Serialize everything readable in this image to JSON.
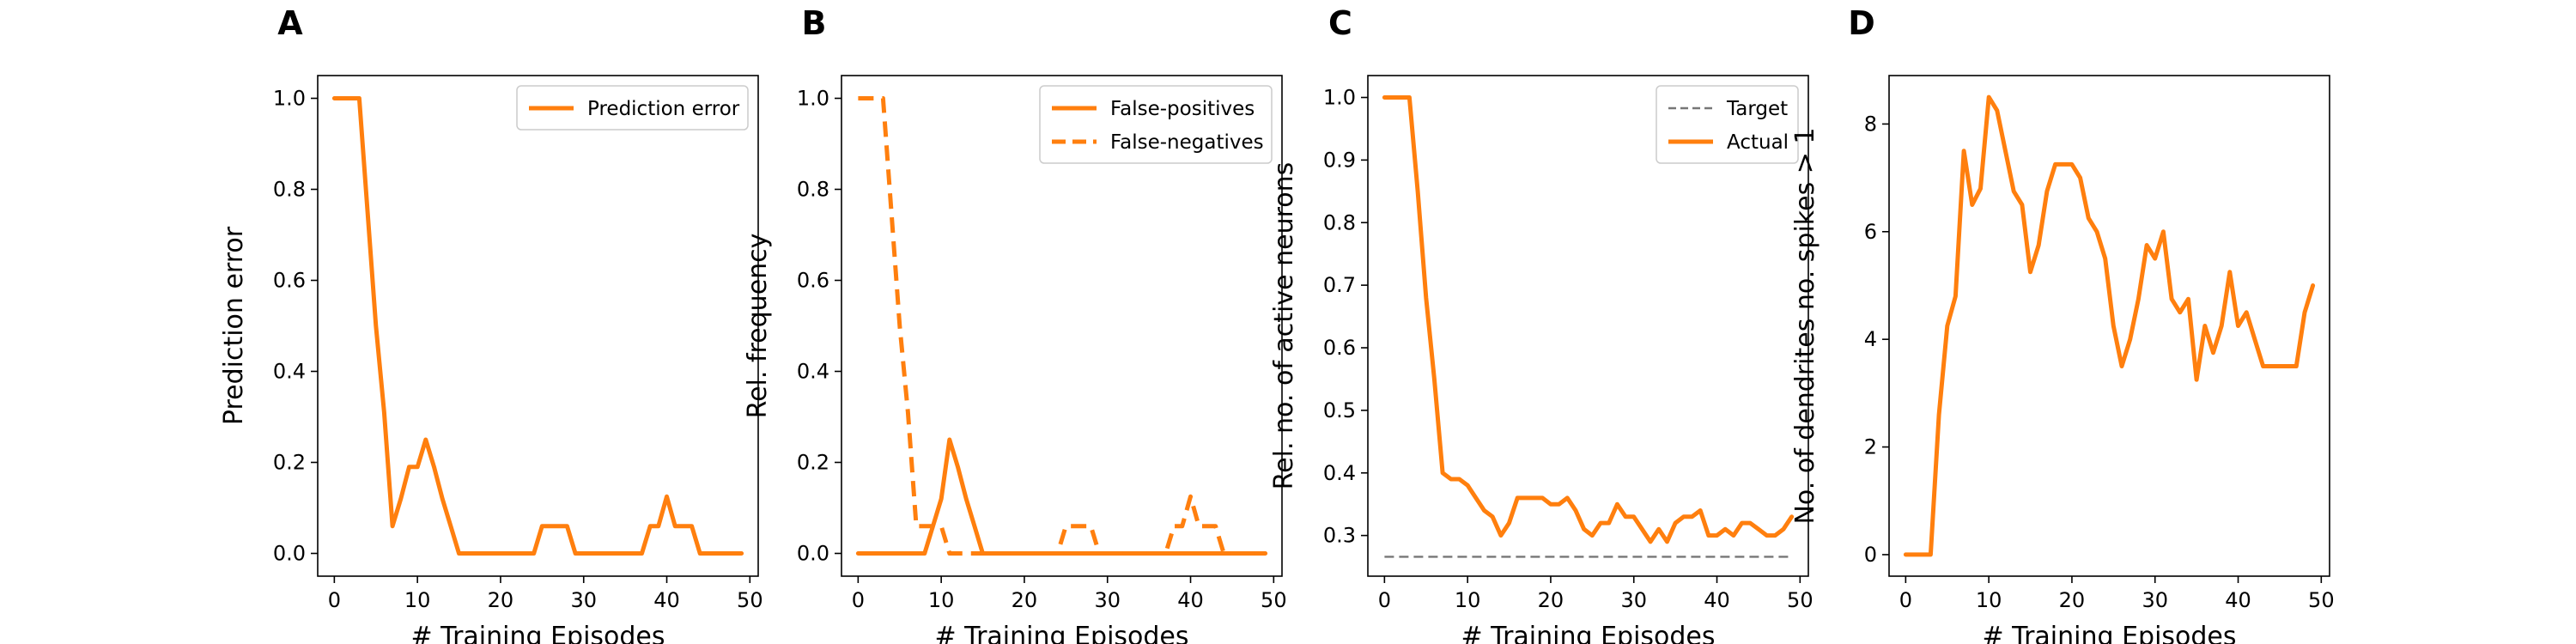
{
  "colors": {
    "series": "#ff7f0e",
    "target": "#777777",
    "frame": "#000000"
  },
  "chart_data": [
    {
      "type": "line",
      "panel_label": "A",
      "xlabel": "# Training Episodes",
      "ylabel": "Prediction error",
      "xlim": [
        -2,
        51
      ],
      "ylim": [
        -0.05,
        1.05
      ],
      "xticks": [
        0,
        10,
        20,
        30,
        40,
        50
      ],
      "yticks": [
        0.0,
        0.2,
        0.4,
        0.6,
        0.8,
        1.0
      ],
      "ytick_labels": [
        "0.0",
        "0.2",
        "0.4",
        "0.6",
        "0.8",
        "1.0"
      ],
      "legend_position": "top-right",
      "grid": false,
      "series": [
        {
          "name": "Prediction error",
          "style": "solid",
          "x": [
            0,
            1,
            2,
            3,
            4,
            5,
            6,
            7,
            8,
            9,
            10,
            11,
            12,
            13,
            14,
            15,
            16,
            17,
            18,
            19,
            20,
            21,
            22,
            23,
            24,
            25,
            26,
            27,
            28,
            29,
            30,
            31,
            32,
            33,
            34,
            35,
            36,
            37,
            38,
            39,
            40,
            41,
            42,
            43,
            44,
            45,
            46,
            47,
            48,
            49
          ],
          "y": [
            1,
            1,
            1,
            1,
            0.75,
            0.5,
            0.31,
            0.06,
            0.12,
            0.19,
            0.19,
            0.25,
            0.19,
            0.12,
            0.06,
            0,
            0,
            0,
            0,
            0,
            0,
            0,
            0,
            0,
            0,
            0.06,
            0.06,
            0.06,
            0.06,
            0,
            0,
            0,
            0,
            0,
            0,
            0,
            0,
            0,
            0.06,
            0.06,
            0.125,
            0.06,
            0.06,
            0.06,
            0,
            0,
            0,
            0,
            0,
            0
          ]
        }
      ]
    },
    {
      "type": "line",
      "panel_label": "B",
      "xlabel": "# Training Episodes",
      "ylabel": "Rel. frequency",
      "xlim": [
        -2,
        51
      ],
      "ylim": [
        -0.05,
        1.05
      ],
      "xticks": [
        0,
        10,
        20,
        30,
        40,
        50
      ],
      "yticks": [
        0.0,
        0.2,
        0.4,
        0.6,
        0.8,
        1.0
      ],
      "ytick_labels": [
        "0.0",
        "0.2",
        "0.4",
        "0.6",
        "0.8",
        "1.0"
      ],
      "legend_position": "top-right",
      "grid": false,
      "series": [
        {
          "name": "False-positives",
          "style": "solid",
          "x": [
            0,
            1,
            2,
            3,
            4,
            5,
            6,
            7,
            8,
            9,
            10,
            11,
            12,
            13,
            14,
            15,
            16,
            17,
            18,
            19,
            20,
            21,
            22,
            23,
            24,
            25,
            26,
            27,
            28,
            29,
            30,
            31,
            32,
            33,
            34,
            35,
            36,
            37,
            38,
            39,
            40,
            41,
            42,
            43,
            44,
            45,
            46,
            47,
            48,
            49
          ],
          "y": [
            0,
            0,
            0,
            0,
            0,
            0,
            0,
            0,
            0,
            0.06,
            0.12,
            0.25,
            0.19,
            0.12,
            0.06,
            0,
            0,
            0,
            0,
            0,
            0,
            0,
            0,
            0,
            0,
            0,
            0,
            0,
            0,
            0,
            0,
            0,
            0,
            0,
            0,
            0,
            0,
            0,
            0,
            0,
            0,
            0,
            0,
            0,
            0,
            0,
            0,
            0,
            0,
            0
          ]
        },
        {
          "name": "False-negatives",
          "style": "dashed",
          "x": [
            0,
            1,
            2,
            3,
            4,
            5,
            6,
            7,
            8,
            9,
            10,
            11,
            12,
            13,
            14,
            15,
            16,
            17,
            18,
            19,
            20,
            21,
            22,
            23,
            24,
            25,
            26,
            27,
            28,
            29,
            30,
            31,
            32,
            33,
            34,
            35,
            36,
            37,
            38,
            39,
            40,
            41,
            42,
            43,
            44,
            45,
            46,
            47,
            48,
            49
          ],
          "y": [
            1,
            1,
            1,
            1,
            0.75,
            0.5,
            0.31,
            0.06,
            0.06,
            0.06,
            0.06,
            0,
            0,
            0,
            0,
            0,
            0,
            0,
            0,
            0,
            0,
            0,
            0,
            0,
            0,
            0.06,
            0.06,
            0.06,
            0.06,
            0,
            0,
            0,
            0,
            0,
            0,
            0,
            0,
            0,
            0.06,
            0.06,
            0.125,
            0.06,
            0.06,
            0.06,
            0,
            0,
            0,
            0,
            0,
            0
          ]
        }
      ]
    },
    {
      "type": "line",
      "panel_label": "C",
      "xlabel": "# Training Episodes",
      "ylabel": "Rel. no. of active neurons",
      "xlim": [
        -2,
        51
      ],
      "ylim": [
        0.235,
        1.035
      ],
      "xticks": [
        0,
        10,
        20,
        30,
        40,
        50
      ],
      "yticks": [
        0.3,
        0.4,
        0.5,
        0.6,
        0.7,
        0.8,
        0.9,
        1.0
      ],
      "ytick_labels": [
        "0.3",
        "0.4",
        "0.5",
        "0.6",
        "0.7",
        "0.8",
        "0.9",
        "1.0"
      ],
      "legend_position": "top-right",
      "grid": false,
      "series": [
        {
          "name": "Target",
          "style": "dashed-thin",
          "x": [
            0,
            49
          ],
          "y": [
            0.266,
            0.266
          ]
        },
        {
          "name": "Actual",
          "style": "solid",
          "x": [
            0,
            1,
            2,
            3,
            4,
            5,
            6,
            7,
            8,
            9,
            10,
            11,
            12,
            13,
            14,
            15,
            16,
            17,
            18,
            19,
            20,
            21,
            22,
            23,
            24,
            25,
            26,
            27,
            28,
            29,
            30,
            31,
            32,
            33,
            34,
            35,
            36,
            37,
            38,
            39,
            40,
            41,
            42,
            43,
            44,
            45,
            46,
            47,
            48,
            49
          ],
          "y": [
            1,
            1,
            1,
            1,
            0.85,
            0.68,
            0.55,
            0.4,
            0.39,
            0.39,
            0.38,
            0.36,
            0.34,
            0.33,
            0.3,
            0.32,
            0.36,
            0.36,
            0.36,
            0.36,
            0.35,
            0.35,
            0.36,
            0.34,
            0.31,
            0.3,
            0.32,
            0.32,
            0.35,
            0.33,
            0.33,
            0.31,
            0.29,
            0.31,
            0.29,
            0.32,
            0.33,
            0.33,
            0.34,
            0.3,
            0.3,
            0.31,
            0.3,
            0.32,
            0.32,
            0.31,
            0.3,
            0.3,
            0.31,
            0.33
          ]
        }
      ]
    },
    {
      "type": "line",
      "panel_label": "D",
      "xlabel": "# Training Episodes",
      "ylabel": "No. of dendrites no. spikes > 1",
      "xlim": [
        -2,
        51
      ],
      "ylim": [
        -0.4,
        8.9
      ],
      "xticks": [
        0,
        10,
        20,
        30,
        40,
        50
      ],
      "yticks": [
        0,
        2,
        4,
        6,
        8
      ],
      "ytick_labels": [
        "0",
        "2",
        "4",
        "6",
        "8"
      ],
      "grid": false,
      "series": [
        {
          "name": "",
          "style": "solid",
          "x": [
            0,
            1,
            2,
            3,
            4,
            5,
            6,
            7,
            8,
            9,
            10,
            11,
            12,
            13,
            14,
            15,
            16,
            17,
            18,
            19,
            20,
            21,
            22,
            23,
            24,
            25,
            26,
            27,
            28,
            29,
            30,
            31,
            32,
            33,
            34,
            35,
            36,
            37,
            38,
            39,
            40,
            41,
            42,
            43,
            44,
            45,
            46,
            47,
            48,
            49
          ],
          "y": [
            0,
            0,
            0,
            0,
            2.6,
            4.25,
            4.8,
            7.5,
            6.5,
            6.8,
            8.5,
            8.25,
            7.5,
            6.75,
            6.5,
            5.25,
            5.75,
            6.75,
            7.25,
            7.25,
            7.25,
            7.0,
            6.25,
            6.0,
            5.5,
            4.25,
            3.5,
            4.0,
            4.75,
            5.75,
            5.5,
            6.0,
            4.75,
            4.5,
            4.75,
            3.25,
            4.25,
            3.75,
            4.25,
            5.25,
            4.25,
            4.5,
            4.0,
            3.5,
            3.5,
            3.5,
            3.5,
            3.5,
            4.5,
            5.0
          ]
        }
      ]
    }
  ]
}
